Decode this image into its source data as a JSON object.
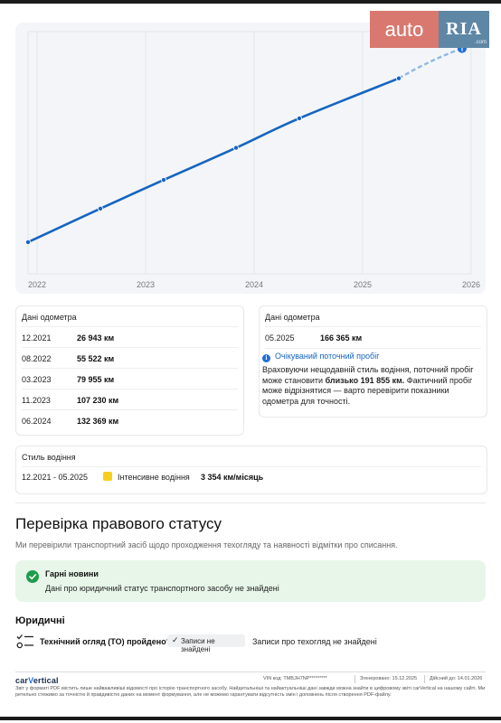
{
  "brand_logo": {
    "part1": "auto",
    "part2": "RIA",
    "suffix": ".com"
  },
  "chart_data": {
    "type": "line",
    "x_tick_labels": [
      "2022",
      "2023",
      "2024",
      "2025",
      "2026"
    ],
    "x_domain": [
      "2021-12",
      "2026-01"
    ],
    "y_range_km": [
      0,
      200000
    ],
    "series": [
      {
        "style": "solid",
        "points": [
          {
            "date": "2021-12",
            "km": 26943
          },
          {
            "date": "2022-08",
            "km": 55522
          },
          {
            "date": "2023-03",
            "km": 79955
          },
          {
            "date": "2023-11",
            "km": 107230
          },
          {
            "date": "2024-06",
            "km": 132369
          },
          {
            "date": "2025-05",
            "km": 166365
          }
        ]
      },
      {
        "style": "dashed",
        "points": [
          {
            "date": "2025-05",
            "km": 166365
          },
          {
            "date": "2025-12",
            "km": 191855
          }
        ]
      }
    ],
    "grid": "vertical",
    "line_color": "#1565c0",
    "projection_color": "#8fb8e6"
  },
  "odometer_left": {
    "title": "Дані одометра",
    "rows": [
      {
        "date": "12.2021",
        "value": "26 943 км"
      },
      {
        "date": "08.2022",
        "value": "55 522 км"
      },
      {
        "date": "03.2023",
        "value": "79 955 км"
      },
      {
        "date": "11.2023",
        "value": "107 230 км"
      },
      {
        "date": "06.2024",
        "value": "132 369 км"
      }
    ]
  },
  "odometer_right": {
    "title": "Дані одометра",
    "rows": [
      {
        "date": "05.2025",
        "value": "166 365 км"
      }
    ],
    "expected_title": "Очікуваний поточний пробіг",
    "expected_text_1": "Враховуючи нещодавній стиль водіння, поточний пробіг може становити ",
    "expected_bold": "близько 191 855 км.",
    "expected_text_2": " Фактичний пробіг може відрізнятися — варто перевірити показники одометра для точності."
  },
  "driving_style": {
    "title": "Стиль водіння",
    "period": "12.2021 - 05.2025",
    "label": "Інтенсивне водіння",
    "value": "3 354 км/місяць",
    "color": "#f6cf1a"
  },
  "legal": {
    "title": "Перевірка правового статусу",
    "subtitle": "Ми перевірили транспортний засіб щодо проходження техогляду та наявності відмітки про списання.",
    "good_title": "Гарні новини",
    "good_text": "Дані про юридичний статус транспортного засобу не знайдені",
    "section": "Юридичні",
    "question": "Технічний огляд (ТО) пройдено?",
    "badge": "Записи не знайдені",
    "result": "Записи про техогляд не знайдені"
  },
  "footer": {
    "brand_a": "car",
    "brand_b": "V",
    "brand_c": "ertical",
    "vin": "VIN код: TMBJH7NP*********",
    "generated": "Згенеровано: 15.12.2025",
    "valid": "Дійсний до: 14.01.2026",
    "disclaimer": "Звіт у форматі PDF містить лише найважливіші відомості про історію транспортного засобу. Найдетальніші та найактуальніші дані завжди можна знайти в цифровому звіті carVertical на нашому сайті. Ми ретельно стежимо за точністю й правдивістю даних на момент формування, але не можемо гарантувати відсутність змін і доповнень після створення PDF-файлу."
  }
}
